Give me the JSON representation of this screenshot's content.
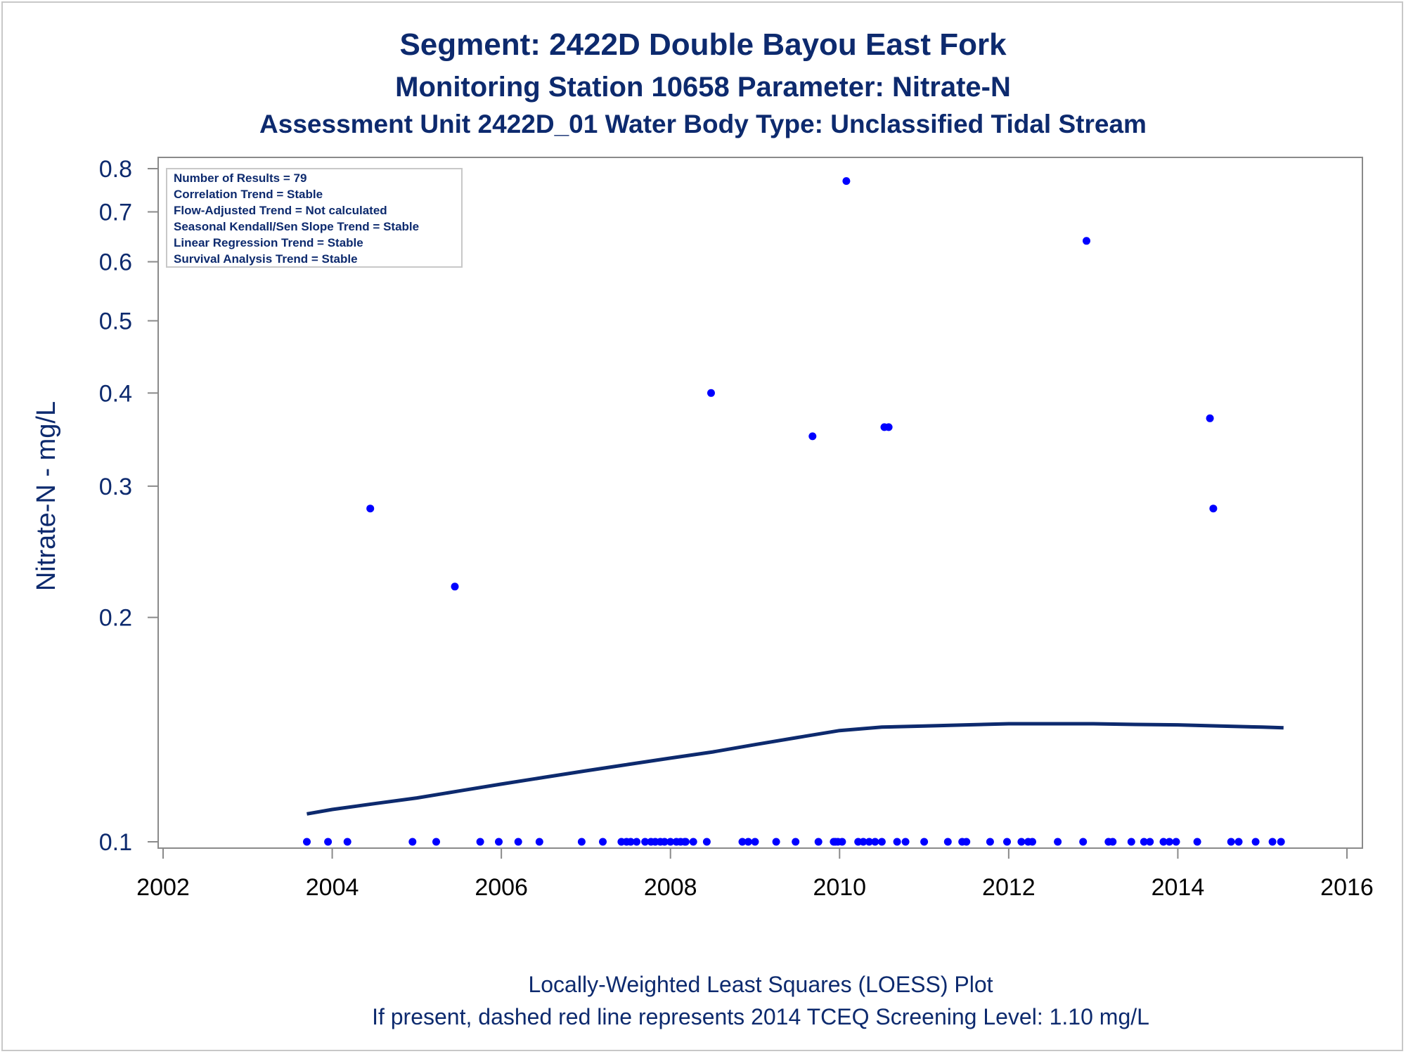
{
  "chart_data": {
    "type": "scatter",
    "title": "Segment: 2422D  Double Bayou East Fork",
    "subtitle": "Monitoring Station 10658 Parameter: Nitrate-N",
    "subtitle2": "Assessment Unit 2422D_01   Water Body Type: Unclassified Tidal Stream",
    "xlabel": "",
    "ylabel": "Nitrate-N - mg/L",
    "xlim": [
      2002,
      2016
    ],
    "ylim": [
      0.1,
      0.8
    ],
    "yscale": "log",
    "xticks": [
      2002,
      2004,
      2006,
      2008,
      2010,
      2012,
      2014,
      2016
    ],
    "yticks": [
      0.1,
      0.2,
      0.3,
      0.4,
      0.5,
      0.6,
      0.7,
      0.8
    ],
    "ytick_labels": [
      "0.1",
      "0.2",
      "0.3",
      "0.4",
      "0.5",
      "0.6",
      "0.7",
      "0.8"
    ],
    "grid": false,
    "stats_box": [
      "Number of Results = 79",
      "Correlation Trend = Stable",
      "Flow-Adjusted Trend = Not calculated",
      "Seasonal Kendall/Sen Slope Trend = Stable",
      "Linear Regression Trend = Stable",
      "Survival Analysis Trend = Stable"
    ],
    "footnotes": [
      "Locally-Weighted Least Squares (LOESS) Plot",
      "If present, dashed red line represents 2014 TCEQ Screening Level: 1.10 mg/L"
    ],
    "colors": {
      "points": "#0000ff",
      "loess": "#0d2a6e",
      "text": "#0d2a6e"
    },
    "points": [
      [
        2003.7,
        0.1
      ],
      [
        2003.95,
        0.1
      ],
      [
        2004.18,
        0.1
      ],
      [
        2004.45,
        0.28
      ],
      [
        2004.95,
        0.1
      ],
      [
        2005.23,
        0.1
      ],
      [
        2005.45,
        0.22
      ],
      [
        2005.75,
        0.1
      ],
      [
        2005.97,
        0.1
      ],
      [
        2006.2,
        0.1
      ],
      [
        2006.45,
        0.1
      ],
      [
        2006.95,
        0.1
      ],
      [
        2007.2,
        0.1
      ],
      [
        2007.42,
        0.1
      ],
      [
        2007.48,
        0.1
      ],
      [
        2007.53,
        0.1
      ],
      [
        2007.6,
        0.1
      ],
      [
        2007.7,
        0.1
      ],
      [
        2007.77,
        0.1
      ],
      [
        2007.82,
        0.1
      ],
      [
        2007.88,
        0.1
      ],
      [
        2007.93,
        0.1
      ],
      [
        2008.0,
        0.1
      ],
      [
        2008.07,
        0.1
      ],
      [
        2008.12,
        0.1
      ],
      [
        2008.17,
        0.1
      ],
      [
        2008.27,
        0.1
      ],
      [
        2008.43,
        0.1
      ],
      [
        2008.48,
        0.4
      ],
      [
        2008.85,
        0.1
      ],
      [
        2008.92,
        0.1
      ],
      [
        2009.0,
        0.1
      ],
      [
        2009.25,
        0.1
      ],
      [
        2009.48,
        0.1
      ],
      [
        2009.68,
        0.35
      ],
      [
        2009.75,
        0.1
      ],
      [
        2009.93,
        0.1
      ],
      [
        2009.98,
        0.1
      ],
      [
        2010.03,
        0.1
      ],
      [
        2010.08,
        0.77
      ],
      [
        2010.22,
        0.1
      ],
      [
        2010.28,
        0.1
      ],
      [
        2010.35,
        0.1
      ],
      [
        2010.42,
        0.1
      ],
      [
        2010.5,
        0.1
      ],
      [
        2010.53,
        0.36
      ],
      [
        2010.58,
        0.36
      ],
      [
        2010.68,
        0.1
      ],
      [
        2010.78,
        0.1
      ],
      [
        2011.0,
        0.1
      ],
      [
        2011.28,
        0.1
      ],
      [
        2011.45,
        0.1
      ],
      [
        2011.5,
        0.1
      ],
      [
        2011.78,
        0.1
      ],
      [
        2011.98,
        0.1
      ],
      [
        2012.15,
        0.1
      ],
      [
        2012.23,
        0.1
      ],
      [
        2012.28,
        0.1
      ],
      [
        2012.58,
        0.1
      ],
      [
        2012.88,
        0.1
      ],
      [
        2012.92,
        0.64
      ],
      [
        2013.18,
        0.1
      ],
      [
        2013.23,
        0.1
      ],
      [
        2013.45,
        0.1
      ],
      [
        2013.6,
        0.1
      ],
      [
        2013.67,
        0.1
      ],
      [
        2013.83,
        0.1
      ],
      [
        2013.9,
        0.1
      ],
      [
        2013.98,
        0.1
      ],
      [
        2014.23,
        0.1
      ],
      [
        2014.38,
        0.37
      ],
      [
        2014.42,
        0.28
      ],
      [
        2014.63,
        0.1
      ],
      [
        2014.72,
        0.1
      ],
      [
        2014.92,
        0.1
      ],
      [
        2015.12,
        0.1
      ],
      [
        2015.22,
        0.1
      ],
      [
        2008.18,
        0.1
      ],
      [
        2009.95,
        0.1
      ]
    ],
    "loess": [
      [
        2003.7,
        0.109
      ],
      [
        2004.0,
        0.1105
      ],
      [
        2004.5,
        0.1125
      ],
      [
        2005.0,
        0.1145
      ],
      [
        2005.5,
        0.117
      ],
      [
        2006.0,
        0.1195
      ],
      [
        2006.5,
        0.122
      ],
      [
        2007.0,
        0.1245
      ],
      [
        2007.5,
        0.127
      ],
      [
        2008.0,
        0.1295
      ],
      [
        2008.5,
        0.132
      ],
      [
        2009.0,
        0.135
      ],
      [
        2009.5,
        0.138
      ],
      [
        2010.0,
        0.141
      ],
      [
        2010.5,
        0.1425
      ],
      [
        2011.0,
        0.143
      ],
      [
        2011.5,
        0.1435
      ],
      [
        2012.0,
        0.144
      ],
      [
        2012.5,
        0.144
      ],
      [
        2013.0,
        0.144
      ],
      [
        2013.5,
        0.1437
      ],
      [
        2014.0,
        0.1435
      ],
      [
        2014.5,
        0.143
      ],
      [
        2015.0,
        0.1425
      ],
      [
        2015.25,
        0.1422
      ]
    ]
  }
}
